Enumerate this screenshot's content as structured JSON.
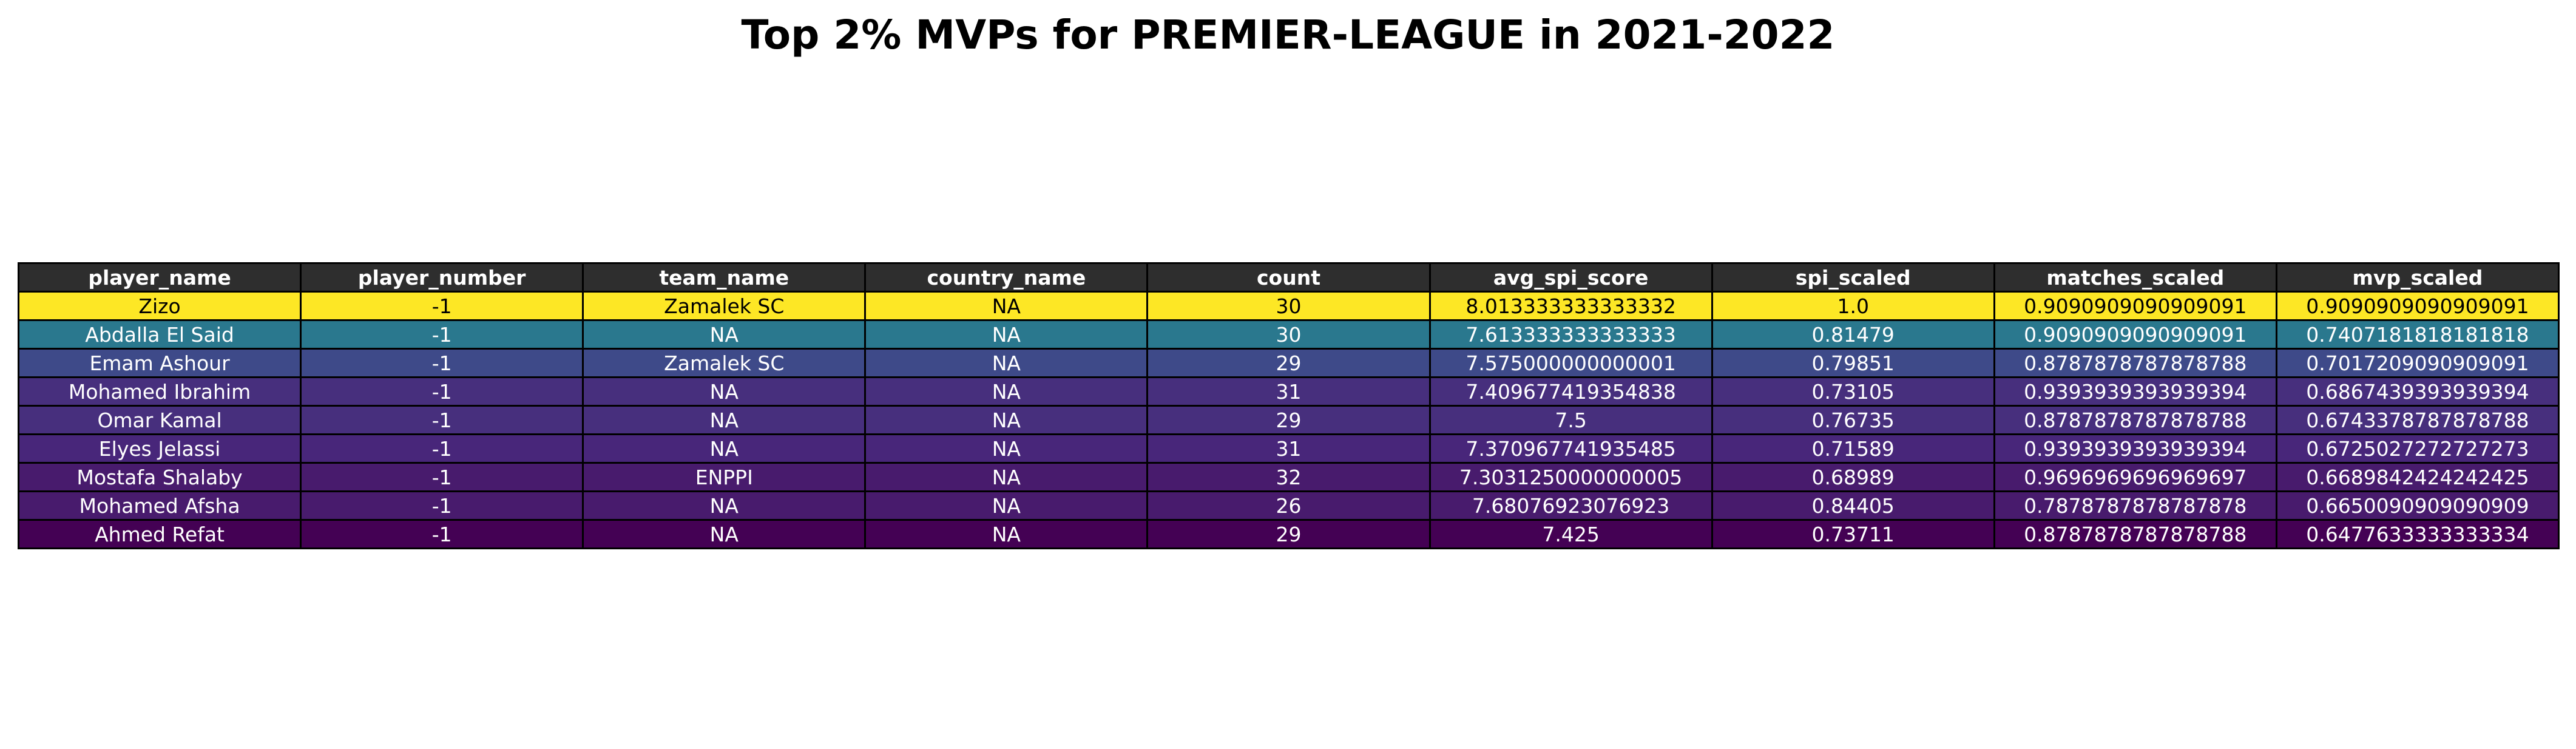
{
  "chart_data": {
    "type": "table",
    "title": "Top 2% MVPs for PREMIER-LEAGUE in 2021-2022",
    "columns": [
      "player_name",
      "player_number",
      "team_name",
      "country_name",
      "count",
      "avg_spi_score",
      "spi_scaled",
      "matches_scaled",
      "mvp_scaled"
    ],
    "rows": [
      [
        "Zizo",
        "-1",
        "Zamalek SC",
        "NA",
        "30",
        "8.013333333333332",
        "1.0",
        "0.9090909090909091",
        "0.9090909090909091"
      ],
      [
        "Abdalla El Said",
        "-1",
        "NA",
        "NA",
        "30",
        "7.613333333333333",
        "0.81479",
        "0.9090909090909091",
        "0.7407181818181818"
      ],
      [
        "Emam Ashour",
        "-1",
        "Zamalek SC",
        "NA",
        "29",
        "7.575000000000001",
        "0.79851",
        "0.8787878787878788",
        "0.7017209090909091"
      ],
      [
        "Mohamed Ibrahim",
        "-1",
        "NA",
        "NA",
        "31",
        "7.409677419354838",
        "0.73105",
        "0.9393939393939394",
        "0.6867439393939394"
      ],
      [
        "Omar Kamal",
        "-1",
        "NA",
        "NA",
        "29",
        "7.5",
        "0.76735",
        "0.8787878787878788",
        "0.6743378787878788"
      ],
      [
        "Elyes Jelassi",
        "-1",
        "NA",
        "NA",
        "31",
        "7.370967741935485",
        "0.71589",
        "0.9393939393939394",
        "0.6725027272727273"
      ],
      [
        "Mostafa Shalaby",
        "-1",
        "ENPPI",
        "NA",
        "32",
        "7.3031250000000005",
        "0.68989",
        "0.9696969696969697",
        "0.6689842424242425"
      ],
      [
        "Mohamed Afsha",
        "-1",
        "NA",
        "NA",
        "26",
        "7.68076923076923",
        "0.84405",
        "0.7878787878787878",
        "0.6650090909090909"
      ],
      [
        "Ahmed Refat",
        "-1",
        "NA",
        "NA",
        "29",
        "7.425",
        "0.73711",
        "0.8787878787878788",
        "0.6477633333333334"
      ]
    ],
    "row_colors": [
      "#fde725",
      "#2a788e",
      "#3e4a89",
      "#472f7d",
      "#472f7d",
      "#48267a",
      "#481b6d",
      "#481b6d",
      "#440154"
    ],
    "row_text_colors": [
      "#000000",
      "#ffffff",
      "#ffffff",
      "#ffffff",
      "#ffffff",
      "#ffffff",
      "#ffffff",
      "#ffffff",
      "#ffffff"
    ],
    "header_color": "#2e2e2e",
    "header_text_color": "#ffffff"
  }
}
